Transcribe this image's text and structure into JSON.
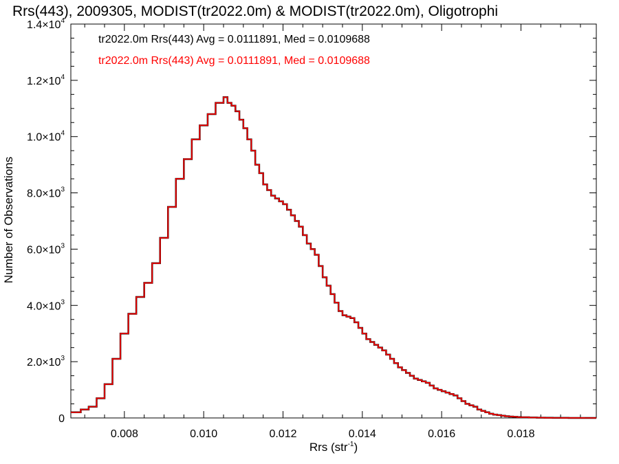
{
  "chart_data": {
    "type": "step-histogram",
    "title": "Rrs(443), 2009305, MODIST(tr2022.0m) & MODIST(tr2022.0m), Oligotrophi",
    "xlabel": {
      "text": "Rrs (str",
      "sup": "-1",
      "tail": ")"
    },
    "ylabel": "Number of Observations",
    "xlim": [
      0.00665,
      0.0199
    ],
    "ylim": [
      0,
      14000
    ],
    "x_ticks": [
      {
        "value": 0.008,
        "label": "0.008"
      },
      {
        "value": 0.01,
        "label": "0.010"
      },
      {
        "value": 0.012,
        "label": "0.012"
      },
      {
        "value": 0.014,
        "label": "0.014"
      },
      {
        "value": 0.016,
        "label": "0.016"
      },
      {
        "value": 0.018,
        "label": "0.018"
      }
    ],
    "y_ticks": [
      {
        "value": 0,
        "mantissa": "0",
        "exp": ""
      },
      {
        "value": 2000,
        "mantissa": "2.0×10",
        "exp": "3"
      },
      {
        "value": 4000,
        "mantissa": "4.0×10",
        "exp": "3"
      },
      {
        "value": 6000,
        "mantissa": "6.0×10",
        "exp": "3"
      },
      {
        "value": 8000,
        "mantissa": "8.0×10",
        "exp": "3"
      },
      {
        "value": 10000,
        "mantissa": "1.0×10",
        "exp": "4"
      },
      {
        "value": 12000,
        "mantissa": "1.2×10",
        "exp": "4"
      },
      {
        "value": 14000,
        "mantissa": "1.4×10",
        "exp": "4"
      }
    ],
    "annotations": [
      {
        "text": "tr2022.0m Rrs(443) Avg = 0.0111891, Med = 0.0109688",
        "color": "#000000"
      },
      {
        "text": "tr2022.0m Rrs(443) Avg = 0.0111891, Med = 0.0109688",
        "color": "#ff0000"
      }
    ],
    "series": [
      {
        "color": "#000000"
      },
      {
        "color": "#ff0000"
      }
    ],
    "x": [
      0.00665,
      0.0069,
      0.0071,
      0.0073,
      0.0075,
      0.0077,
      0.0079,
      0.0081,
      0.0083,
      0.0085,
      0.0087,
      0.0089,
      0.0091,
      0.0093,
      0.0095,
      0.0097,
      0.0099,
      0.0101,
      0.0103,
      0.0105,
      0.0106,
      0.0107,
      0.0108,
      0.0109,
      0.011,
      0.0111,
      0.0112,
      0.0113,
      0.0114,
      0.0115,
      0.0116,
      0.0117,
      0.0118,
      0.0119,
      0.012,
      0.0121,
      0.0122,
      0.0123,
      0.0124,
      0.0125,
      0.0126,
      0.0127,
      0.0128,
      0.0129,
      0.013,
      0.0131,
      0.0132,
      0.0133,
      0.0134,
      0.0135,
      0.0136,
      0.0137,
      0.0138,
      0.0139,
      0.014,
      0.0141,
      0.0142,
      0.0143,
      0.0144,
      0.0145,
      0.0146,
      0.0147,
      0.0148,
      0.0149,
      0.015,
      0.0151,
      0.0152,
      0.0153,
      0.0154,
      0.0155,
      0.0156,
      0.0157,
      0.0158,
      0.0159,
      0.016,
      0.0161,
      0.0162,
      0.0163,
      0.0164,
      0.0165,
      0.0166,
      0.0167,
      0.0168,
      0.0169,
      0.017,
      0.0171,
      0.0172,
      0.0173,
      0.0174,
      0.0175,
      0.0176,
      0.0177,
      0.0178,
      0.0179,
      0.018,
      0.0182,
      0.0184,
      0.0186,
      0.0188,
      0.019,
      0.0192,
      0.0194,
      0.0196,
      0.0198
    ],
    "values": [
      200,
      300,
      400,
      700,
      1200,
      2100,
      3000,
      3700,
      4300,
      4800,
      5500,
      6400,
      7500,
      8500,
      9200,
      9900,
      10400,
      10800,
      11200,
      11400,
      11200,
      11100,
      10900,
      10600,
      10300,
      9900,
      9500,
      9000,
      8700,
      8300,
      8100,
      7900,
      7800,
      7700,
      7600,
      7400,
      7200,
      7000,
      6800,
      6500,
      6200,
      6000,
      5800,
      5400,
      5000,
      4700,
      4400,
      4100,
      3800,
      3650,
      3600,
      3550,
      3400,
      3200,
      3000,
      2800,
      2700,
      2600,
      2500,
      2400,
      2250,
      2100,
      1950,
      1800,
      1700,
      1600,
      1500,
      1400,
      1350,
      1300,
      1250,
      1150,
      1050,
      1000,
      950,
      900,
      850,
      800,
      700,
      600,
      500,
      450,
      400,
      300,
      250,
      200,
      150,
      120,
      100,
      80,
      60,
      50,
      40,
      30,
      25,
      15,
      10,
      5,
      3,
      2,
      1,
      1,
      0,
      0
    ]
  }
}
